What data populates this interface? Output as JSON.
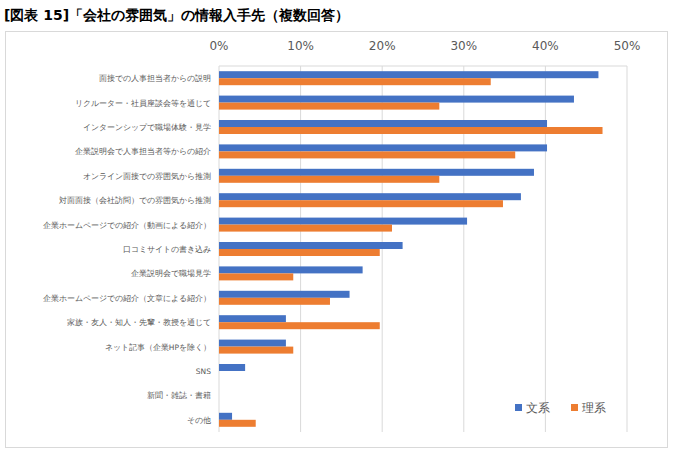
{
  "chart_data": {
    "type": "bar",
    "orientation": "horizontal",
    "title": "[図表 15]「会社の雰囲気」の情報入手先（複数回答）",
    "categories": [
      "面接での人事担当者からの説明",
      "リクルーター・社員座談会等を通じて",
      "インターンシップで職場体験・見学",
      "企業説明会で人事担当者等からの紹介",
      "オンライン面接での雰囲気から推測",
      "対面面接（会社訪問）での雰囲気から推測",
      "企業ホームページでの紹介（動画による紹介）",
      "口コミサイトの書き込み",
      "企業説明会で職場見学",
      "企業ホームページでの紹介（文章による紹介）",
      "家族・友人・知人・先輩・教授を通じて",
      "ネット記事（企業HPを除く）",
      "SNS",
      "新聞・雑誌・書籍",
      "その他"
    ],
    "series": [
      {
        "name": "文系",
        "color": "#4472c4",
        "values": [
          46.5,
          43.5,
          40.2,
          40.2,
          38.6,
          37.0,
          30.4,
          22.5,
          17.6,
          16.0,
          8.2,
          8.2,
          3.2,
          0,
          1.6
        ]
      },
      {
        "name": "理系",
        "color": "#ed7d31",
        "values": [
          33.3,
          27.0,
          47.0,
          36.3,
          27.0,
          34.8,
          21.2,
          19.7,
          9.1,
          13.6,
          19.7,
          9.1,
          0,
          0,
          4.5
        ]
      }
    ],
    "xlim": [
      0,
      50
    ],
    "xticks": [
      {
        "value": 0,
        "label": "0%"
      },
      {
        "value": 10,
        "label": "10%"
      },
      {
        "value": 20,
        "label": "20%"
      },
      {
        "value": 30,
        "label": "30%"
      },
      {
        "value": 40,
        "label": "40%"
      },
      {
        "value": 50,
        "label": "50%"
      }
    ],
    "grid": true,
    "legend": "bottom-right"
  }
}
